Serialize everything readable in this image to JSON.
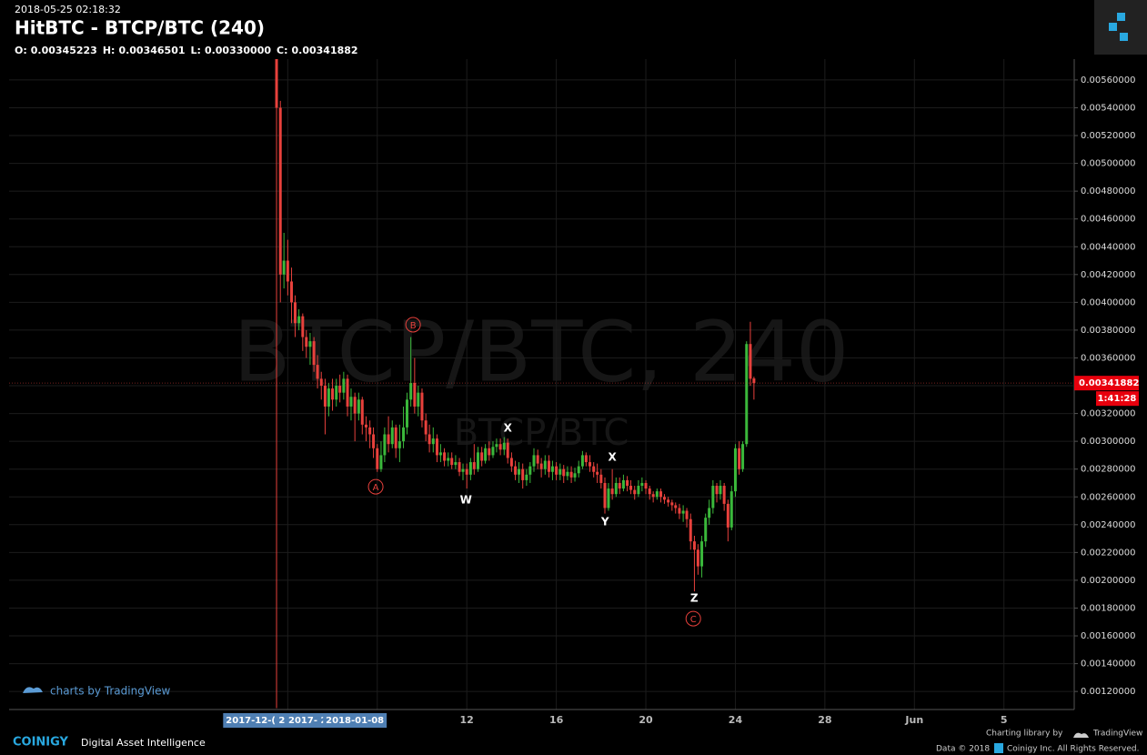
{
  "header": {
    "timestamp": "2018-05-25 02:18:32",
    "title": "HitBTC - BTCP/BTC (240)",
    "ohlc": [
      {
        "label": "O:",
        "value": "0.00345223"
      },
      {
        "label": "H:",
        "value": "0.00346501"
      },
      {
        "label": "L:",
        "value": "0.00330000"
      },
      {
        "label": "C:",
        "value": "0.00341882"
      }
    ]
  },
  "chart_data": {
    "type": "candlestick",
    "watermark": "BTCP/BTC, 240",
    "watermark_small": "BTCP/BTC",
    "up_color": "#3bb83b",
    "down_color": "#e8413c",
    "grid": true,
    "xlim": [
      -8.45,
      39.1
    ],
    "ylim": [
      0.00107,
      0.00575
    ],
    "xticks": [
      12,
      16,
      20,
      24,
      28,
      {
        "value": 32,
        "label": "Jun"
      },
      {
        "value": 36,
        "label": "5"
      }
    ],
    "xgrid_extra": [
      4,
      8
    ],
    "highlighted_x_labels": [
      {
        "value": 2.65,
        "label": "2017-12-( 2("
      },
      {
        "value": 4.89,
        "label": "2017- 2"
      },
      {
        "value": 7.0,
        "label": "2018-01-08"
      }
    ],
    "yticks": [
      {
        "value": 0.0012,
        "label": "0.00120000"
      },
      {
        "value": 0.0014,
        "label": "0.00140000"
      },
      {
        "value": 0.0016,
        "label": "0.00160000"
      },
      {
        "value": 0.0018,
        "label": "0.00180000"
      },
      {
        "value": 0.002,
        "label": "0.00200000"
      },
      {
        "value": 0.0022,
        "label": "0.00220000"
      },
      {
        "value": 0.0024,
        "label": "0.00240000"
      },
      {
        "value": 0.0026,
        "label": "0.00260000"
      },
      {
        "value": 0.0028,
        "label": "0.00280000"
      },
      {
        "value": 0.003,
        "label": "0.00300000"
      },
      {
        "value": 0.0032,
        "label": "0.00320000"
      },
      {
        "value": 0.0034,
        "label": "0.00340000"
      },
      {
        "value": 0.0036,
        "label": "0.00360000"
      },
      {
        "value": 0.0038,
        "label": "0.00380000"
      },
      {
        "value": 0.004,
        "label": "0.00400000"
      },
      {
        "value": 0.0042,
        "label": "0.00420000"
      },
      {
        "value": 0.0044,
        "label": "0.00440000"
      },
      {
        "value": 0.0046,
        "label": "0.00460000"
      },
      {
        "value": 0.0048,
        "label": "0.00480000"
      },
      {
        "value": 0.005,
        "label": "0.00500000"
      },
      {
        "value": 0.0052,
        "label": "0.00520000"
      },
      {
        "value": 0.0054,
        "label": "0.00540000"
      },
      {
        "value": 0.0056,
        "label": "0.00560000"
      }
    ],
    "last_price": {
      "value": 0.00341882,
      "label": "0.00341882"
    },
    "countdown": "1:41:28",
    "x": [
      3.5,
      3.67,
      3.83,
      4.0,
      4.17,
      4.33,
      4.5,
      4.67,
      4.83,
      5.0,
      5.17,
      5.33,
      5.5,
      5.67,
      5.83,
      6.0,
      6.17,
      6.33,
      6.5,
      6.67,
      6.83,
      7.0,
      7.17,
      7.33,
      7.5,
      7.67,
      7.83,
      8.0,
      8.17,
      8.33,
      8.5,
      8.67,
      8.83,
      9.0,
      9.17,
      9.33,
      9.5,
      9.67,
      9.83,
      10.0,
      10.17,
      10.33,
      10.5,
      10.67,
      10.83,
      11.0,
      11.17,
      11.33,
      11.5,
      11.67,
      11.83,
      12.0,
      12.17,
      12.33,
      12.5,
      12.67,
      12.83,
      13.0,
      13.17,
      13.33,
      13.5,
      13.67,
      13.83,
      14.0,
      14.17,
      14.33,
      14.5,
      14.67,
      14.83,
      15.0,
      15.17,
      15.33,
      15.5,
      15.67,
      15.83,
      16.0,
      16.17,
      16.33,
      16.5,
      16.67,
      16.83,
      17.0,
      17.17,
      17.33,
      17.5,
      17.67,
      17.83,
      18.0,
      18.17,
      18.33,
      18.5,
      18.67,
      18.83,
      19.0,
      19.17,
      19.33,
      19.5,
      19.67,
      19.83,
      20.0,
      20.17,
      20.33,
      20.5,
      20.67,
      20.83,
      21.0,
      21.17,
      21.33,
      21.5,
      21.67,
      21.83,
      22.0,
      22.17,
      22.33,
      22.5,
      22.67,
      22.83,
      23.0,
      23.17,
      23.33,
      23.5,
      23.67,
      23.83,
      24.0,
      24.17,
      24.33,
      24.5,
      24.67,
      24.83
    ],
    "open": [
      0.00575,
      0.0054,
      0.0042,
      0.0043,
      0.00415,
      0.004,
      0.00385,
      0.0039,
      0.00375,
      0.00368,
      0.00372,
      0.00355,
      0.00345,
      0.0034,
      0.00325,
      0.00338,
      0.0033,
      0.0034,
      0.00335,
      0.00345,
      0.00325,
      0.00332,
      0.0032,
      0.0033,
      0.00312,
      0.0031,
      0.00305,
      0.00295,
      0.0028,
      0.0029,
      0.00305,
      0.00298,
      0.0031,
      0.00295,
      0.003,
      0.0031,
      0.0033,
      0.00342,
      0.00325,
      0.00335,
      0.00315,
      0.00305,
      0.00298,
      0.00302,
      0.0029,
      0.00292,
      0.00286,
      0.00288,
      0.00283,
      0.00285,
      0.00278,
      0.0028,
      0.00276,
      0.00285,
      0.0028,
      0.00292,
      0.00286,
      0.00295,
      0.0029,
      0.00296,
      0.00298,
      0.00294,
      0.00299,
      0.00288,
      0.00282,
      0.00276,
      0.0028,
      0.00272,
      0.00276,
      0.00282,
      0.0029,
      0.00284,
      0.0028,
      0.00286,
      0.00278,
      0.00282,
      0.00276,
      0.0028,
      0.00275,
      0.00278,
      0.00274,
      0.00277,
      0.00282,
      0.0029,
      0.00285,
      0.00282,
      0.00278,
      0.00276,
      0.0027,
      0.00252,
      0.00266,
      0.00262,
      0.0027,
      0.00266,
      0.00272,
      0.00268,
      0.00265,
      0.00262,
      0.00268,
      0.0027,
      0.00266,
      0.00262,
      0.0026,
      0.00264,
      0.0026,
      0.00258,
      0.00256,
      0.00254,
      0.00252,
      0.00248,
      0.0025,
      0.00244,
      0.00228,
      0.00222,
      0.0021,
      0.00228,
      0.00245,
      0.00252,
      0.00268,
      0.00262,
      0.00268,
      0.00255,
      0.00238,
      0.00264,
      0.00295,
      0.0028,
      0.00298,
      0.0037,
      0.00345223
    ],
    "high": [
      0.00575,
      0.00545,
      0.0045,
      0.00445,
      0.00425,
      0.00405,
      0.00395,
      0.00392,
      0.0038,
      0.00378,
      0.00375,
      0.00362,
      0.0035,
      0.00345,
      0.00342,
      0.00345,
      0.00345,
      0.00348,
      0.0035,
      0.00348,
      0.00338,
      0.00335,
      0.00335,
      0.00332,
      0.00318,
      0.00315,
      0.0031,
      0.00298,
      0.003,
      0.0031,
      0.00318,
      0.00315,
      0.00312,
      0.00312,
      0.00325,
      0.00335,
      0.00375,
      0.0036,
      0.0034,
      0.00338,
      0.0032,
      0.00312,
      0.0031,
      0.00305,
      0.00298,
      0.00295,
      0.00292,
      0.00292,
      0.0029,
      0.00288,
      0.00284,
      0.00284,
      0.00288,
      0.00298,
      0.00296,
      0.00296,
      0.00298,
      0.003,
      0.003,
      0.00302,
      0.00302,
      0.00303,
      0.00302,
      0.00292,
      0.00286,
      0.00285,
      0.00284,
      0.0028,
      0.00285,
      0.00295,
      0.00294,
      0.00288,
      0.0029,
      0.0029,
      0.00286,
      0.00285,
      0.00284,
      0.00283,
      0.00282,
      0.00282,
      0.00281,
      0.00286,
      0.00293,
      0.00292,
      0.0029,
      0.00285,
      0.00284,
      0.0028,
      0.00274,
      0.0027,
      0.0028,
      0.00274,
      0.00274,
      0.00276,
      0.00275,
      0.00272,
      0.00268,
      0.00272,
      0.00274,
      0.00272,
      0.00268,
      0.00264,
      0.00266,
      0.00266,
      0.00262,
      0.0026,
      0.00258,
      0.00256,
      0.00255,
      0.00254,
      0.00252,
      0.00248,
      0.00232,
      0.00226,
      0.00232,
      0.00248,
      0.00258,
      0.00272,
      0.0027,
      0.00272,
      0.0027,
      0.00258,
      0.00268,
      0.00298,
      0.003,
      0.003,
      0.00372,
      0.00386,
      0.00346501
    ],
    "low": [
      0.00108,
      0.004,
      0.0041,
      0.00405,
      0.00385,
      0.00375,
      0.0038,
      0.00365,
      0.0036,
      0.00355,
      0.0035,
      0.00338,
      0.0033,
      0.00305,
      0.00318,
      0.00322,
      0.00325,
      0.00328,
      0.0033,
      0.00318,
      0.00315,
      0.003,
      0.00315,
      0.00305,
      0.003,
      0.00295,
      0.00288,
      0.00278,
      0.00278,
      0.00285,
      0.00292,
      0.00295,
      0.00288,
      0.00285,
      0.00295,
      0.00305,
      0.00325,
      0.0032,
      0.00318,
      0.0031,
      0.003,
      0.00292,
      0.00292,
      0.00285,
      0.00285,
      0.00282,
      0.00282,
      0.0028,
      0.0028,
      0.00275,
      0.00272,
      0.00266,
      0.00272,
      0.00276,
      0.00278,
      0.00282,
      0.00284,
      0.00286,
      0.00288,
      0.00292,
      0.0029,
      0.0029,
      0.00284,
      0.00278,
      0.00272,
      0.0027,
      0.00266,
      0.00268,
      0.0027,
      0.00278,
      0.0028,
      0.00274,
      0.00276,
      0.00274,
      0.00272,
      0.00272,
      0.00272,
      0.0027,
      0.00272,
      0.0027,
      0.00271,
      0.00274,
      0.0028,
      0.00282,
      0.00278,
      0.00274,
      0.0027,
      0.00266,
      0.00248,
      0.0025,
      0.00258,
      0.0026,
      0.00262,
      0.00264,
      0.00264,
      0.00262,
      0.00258,
      0.0026,
      0.00264,
      0.00262,
      0.00258,
      0.00256,
      0.00258,
      0.00256,
      0.00255,
      0.00253,
      0.0025,
      0.00248,
      0.00244,
      0.00242,
      0.00238,
      0.00222,
      0.00192,
      0.00204,
      0.00202,
      0.00224,
      0.0024,
      0.00248,
      0.00256,
      0.00258,
      0.0025,
      0.00228,
      0.00236,
      0.0026,
      0.00276,
      0.00278,
      0.00296,
      0.0034,
      0.0033
    ],
    "close": [
      0.0054,
      0.0042,
      0.0043,
      0.00415,
      0.004,
      0.00385,
      0.0039,
      0.00375,
      0.00368,
      0.00372,
      0.00355,
      0.00345,
      0.0034,
      0.00325,
      0.00338,
      0.0033,
      0.0034,
      0.00335,
      0.00345,
      0.00325,
      0.00332,
      0.0032,
      0.0033,
      0.00312,
      0.0031,
      0.00305,
      0.00295,
      0.0028,
      0.0029,
      0.00305,
      0.00298,
      0.0031,
      0.00295,
      0.003,
      0.0031,
      0.0033,
      0.00342,
      0.00325,
      0.00335,
      0.00315,
      0.00305,
      0.00298,
      0.00302,
      0.0029,
      0.00292,
      0.00286,
      0.00288,
      0.00283,
      0.00285,
      0.00278,
      0.0028,
      0.00276,
      0.00285,
      0.0028,
      0.00292,
      0.00286,
      0.00295,
      0.0029,
      0.00296,
      0.00298,
      0.00294,
      0.00299,
      0.00288,
      0.00282,
      0.00276,
      0.0028,
      0.00272,
      0.00276,
      0.00282,
      0.0029,
      0.00284,
      0.0028,
      0.00286,
      0.00278,
      0.00282,
      0.00276,
      0.0028,
      0.00275,
      0.00278,
      0.00274,
      0.00277,
      0.00282,
      0.0029,
      0.00285,
      0.00282,
      0.00278,
      0.00276,
      0.0027,
      0.00252,
      0.00266,
      0.00262,
      0.0027,
      0.00266,
      0.00272,
      0.00268,
      0.00265,
      0.00262,
      0.00268,
      0.0027,
      0.00266,
      0.00262,
      0.0026,
      0.00264,
      0.0026,
      0.00258,
      0.00256,
      0.00254,
      0.00252,
      0.00248,
      0.0025,
      0.00244,
      0.00228,
      0.00222,
      0.0021,
      0.00228,
      0.00245,
      0.00252,
      0.00268,
      0.00262,
      0.00268,
      0.00255,
      0.00238,
      0.00264,
      0.00295,
      0.0028,
      0.00298,
      0.0037,
      0.00345,
      0.00341882
    ],
    "annotations": [
      {
        "text": "A",
        "circled": true,
        "x": 7.93,
        "y": 0.002673
      },
      {
        "text": "B",
        "circled": true,
        "x": 9.6,
        "y": 0.003839
      },
      {
        "text": "C",
        "circled": true,
        "x": 22.12,
        "y": 0.001724
      },
      {
        "text": "W",
        "circled": false,
        "x": 11.96,
        "y": 0.002581
      },
      {
        "text": "X",
        "circled": false,
        "x": 13.83,
        "y": 0.003099
      },
      {
        "text": "X",
        "circled": false,
        "x": 18.5,
        "y": 0.002889
      },
      {
        "text": "Y",
        "circled": false,
        "x": 18.18,
        "y": 0.002424
      },
      {
        "text": "Z",
        "circled": false,
        "x": 22.16,
        "y": 0.001874
      }
    ]
  },
  "footer": {
    "tradingview_badge": "charts by TradingView",
    "brand": "COINIGY",
    "tagline": "Digital Asset Intelligence",
    "charting_by": "Charting library by",
    "charting_brand": "TradingView",
    "data_copyright": "Data © 2018",
    "rights": "Coinigy Inc. All Rights Reserved."
  }
}
